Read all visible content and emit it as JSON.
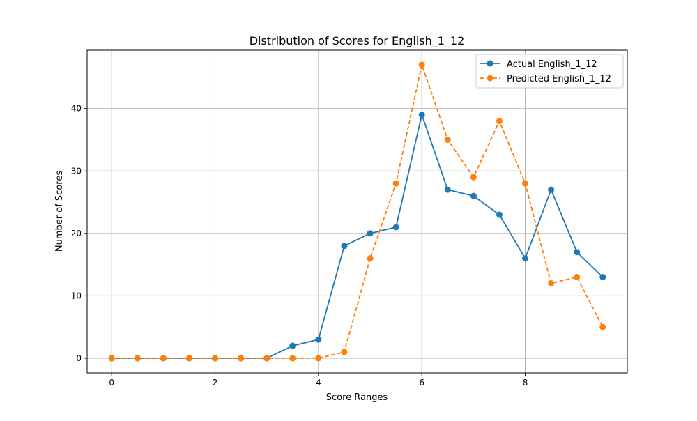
{
  "chart_data": {
    "type": "line",
    "title": "Distribution of Scores for English_1_12",
    "xlabel": "Score Ranges",
    "ylabel": "Number of Scores",
    "x": [
      0,
      0.5,
      1,
      1.5,
      2,
      2.5,
      3,
      3.5,
      4,
      4.5,
      5,
      5.5,
      6,
      6.5,
      7,
      7.5,
      8,
      8.5,
      9,
      9.5
    ],
    "xlim": [
      -0.475,
      9.975
    ],
    "ylim": [
      -2.35,
      49.35
    ],
    "xticks": [
      0,
      2,
      4,
      6,
      8
    ],
    "yticks": [
      0,
      10,
      20,
      30,
      40
    ],
    "grid": true,
    "legend_position": "top-right",
    "series": [
      {
        "name": "Actual English_1_12",
        "color": "#1f77b4",
        "line_style": "solid",
        "marker": "circle",
        "values": [
          0,
          0,
          0,
          0,
          0,
          0,
          0,
          2,
          3,
          18,
          20,
          21,
          39,
          27,
          26,
          23,
          16,
          27,
          17,
          13
        ]
      },
      {
        "name": "Predicted English_1_12",
        "color": "#ff7f0e",
        "line_style": "dashed",
        "marker": "circle",
        "values": [
          0,
          0,
          0,
          0,
          0,
          0,
          0,
          0,
          0,
          1,
          16,
          28,
          47,
          35,
          29,
          38,
          28,
          12,
          13,
          5
        ]
      }
    ]
  }
}
